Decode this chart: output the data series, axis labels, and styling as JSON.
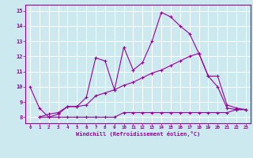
{
  "xlabel": "Windchill (Refroidissement éolien,°C)",
  "bg_color": "#cce9f0",
  "line_color": "#990099",
  "grid_color": "#ffffff",
  "ylim": [
    7.6,
    15.4
  ],
  "xlim": [
    -0.5,
    23.5
  ],
  "yticks": [
    8,
    9,
    10,
    11,
    12,
    13,
    14,
    15
  ],
  "xticks": [
    0,
    1,
    2,
    3,
    4,
    5,
    6,
    7,
    8,
    9,
    10,
    11,
    12,
    13,
    14,
    15,
    16,
    17,
    18,
    19,
    20,
    21,
    22,
    23
  ],
  "line1_x": [
    0,
    1,
    2,
    3,
    4,
    5,
    6,
    7,
    8,
    9,
    10,
    11,
    12,
    13,
    14,
    15,
    16,
    17,
    18,
    19,
    20,
    21,
    22,
    23
  ],
  "line1_y": [
    10.0,
    8.6,
    8.0,
    8.2,
    8.7,
    8.7,
    9.3,
    11.9,
    11.7,
    9.8,
    12.6,
    11.1,
    11.6,
    13.0,
    14.9,
    14.6,
    14.0,
    13.5,
    12.2,
    10.7,
    10.0,
    8.6,
    8.5,
    8.5
  ],
  "line2_x": [
    1,
    2,
    3,
    4,
    5,
    6,
    7,
    8,
    9,
    10,
    11,
    12,
    13,
    14,
    15,
    16,
    17,
    18,
    19,
    20,
    21,
    22,
    23
  ],
  "line2_y": [
    8.0,
    8.2,
    8.3,
    8.7,
    8.7,
    8.8,
    9.4,
    9.6,
    9.8,
    10.1,
    10.3,
    10.6,
    10.9,
    11.1,
    11.4,
    11.7,
    12.0,
    12.2,
    10.7,
    10.7,
    8.8,
    8.6,
    8.5
  ],
  "line3_x": [
    1,
    2,
    3,
    4,
    5,
    6,
    7,
    8,
    9,
    10,
    11,
    12,
    13,
    14,
    15,
    16,
    17,
    18,
    19,
    20,
    21,
    22,
    23
  ],
  "line3_y": [
    8.0,
    8.0,
    8.0,
    8.0,
    8.0,
    8.0,
    8.0,
    8.0,
    8.0,
    8.3,
    8.3,
    8.3,
    8.3,
    8.3,
    8.3,
    8.3,
    8.3,
    8.3,
    8.3,
    8.3,
    8.3,
    8.5,
    8.5
  ]
}
